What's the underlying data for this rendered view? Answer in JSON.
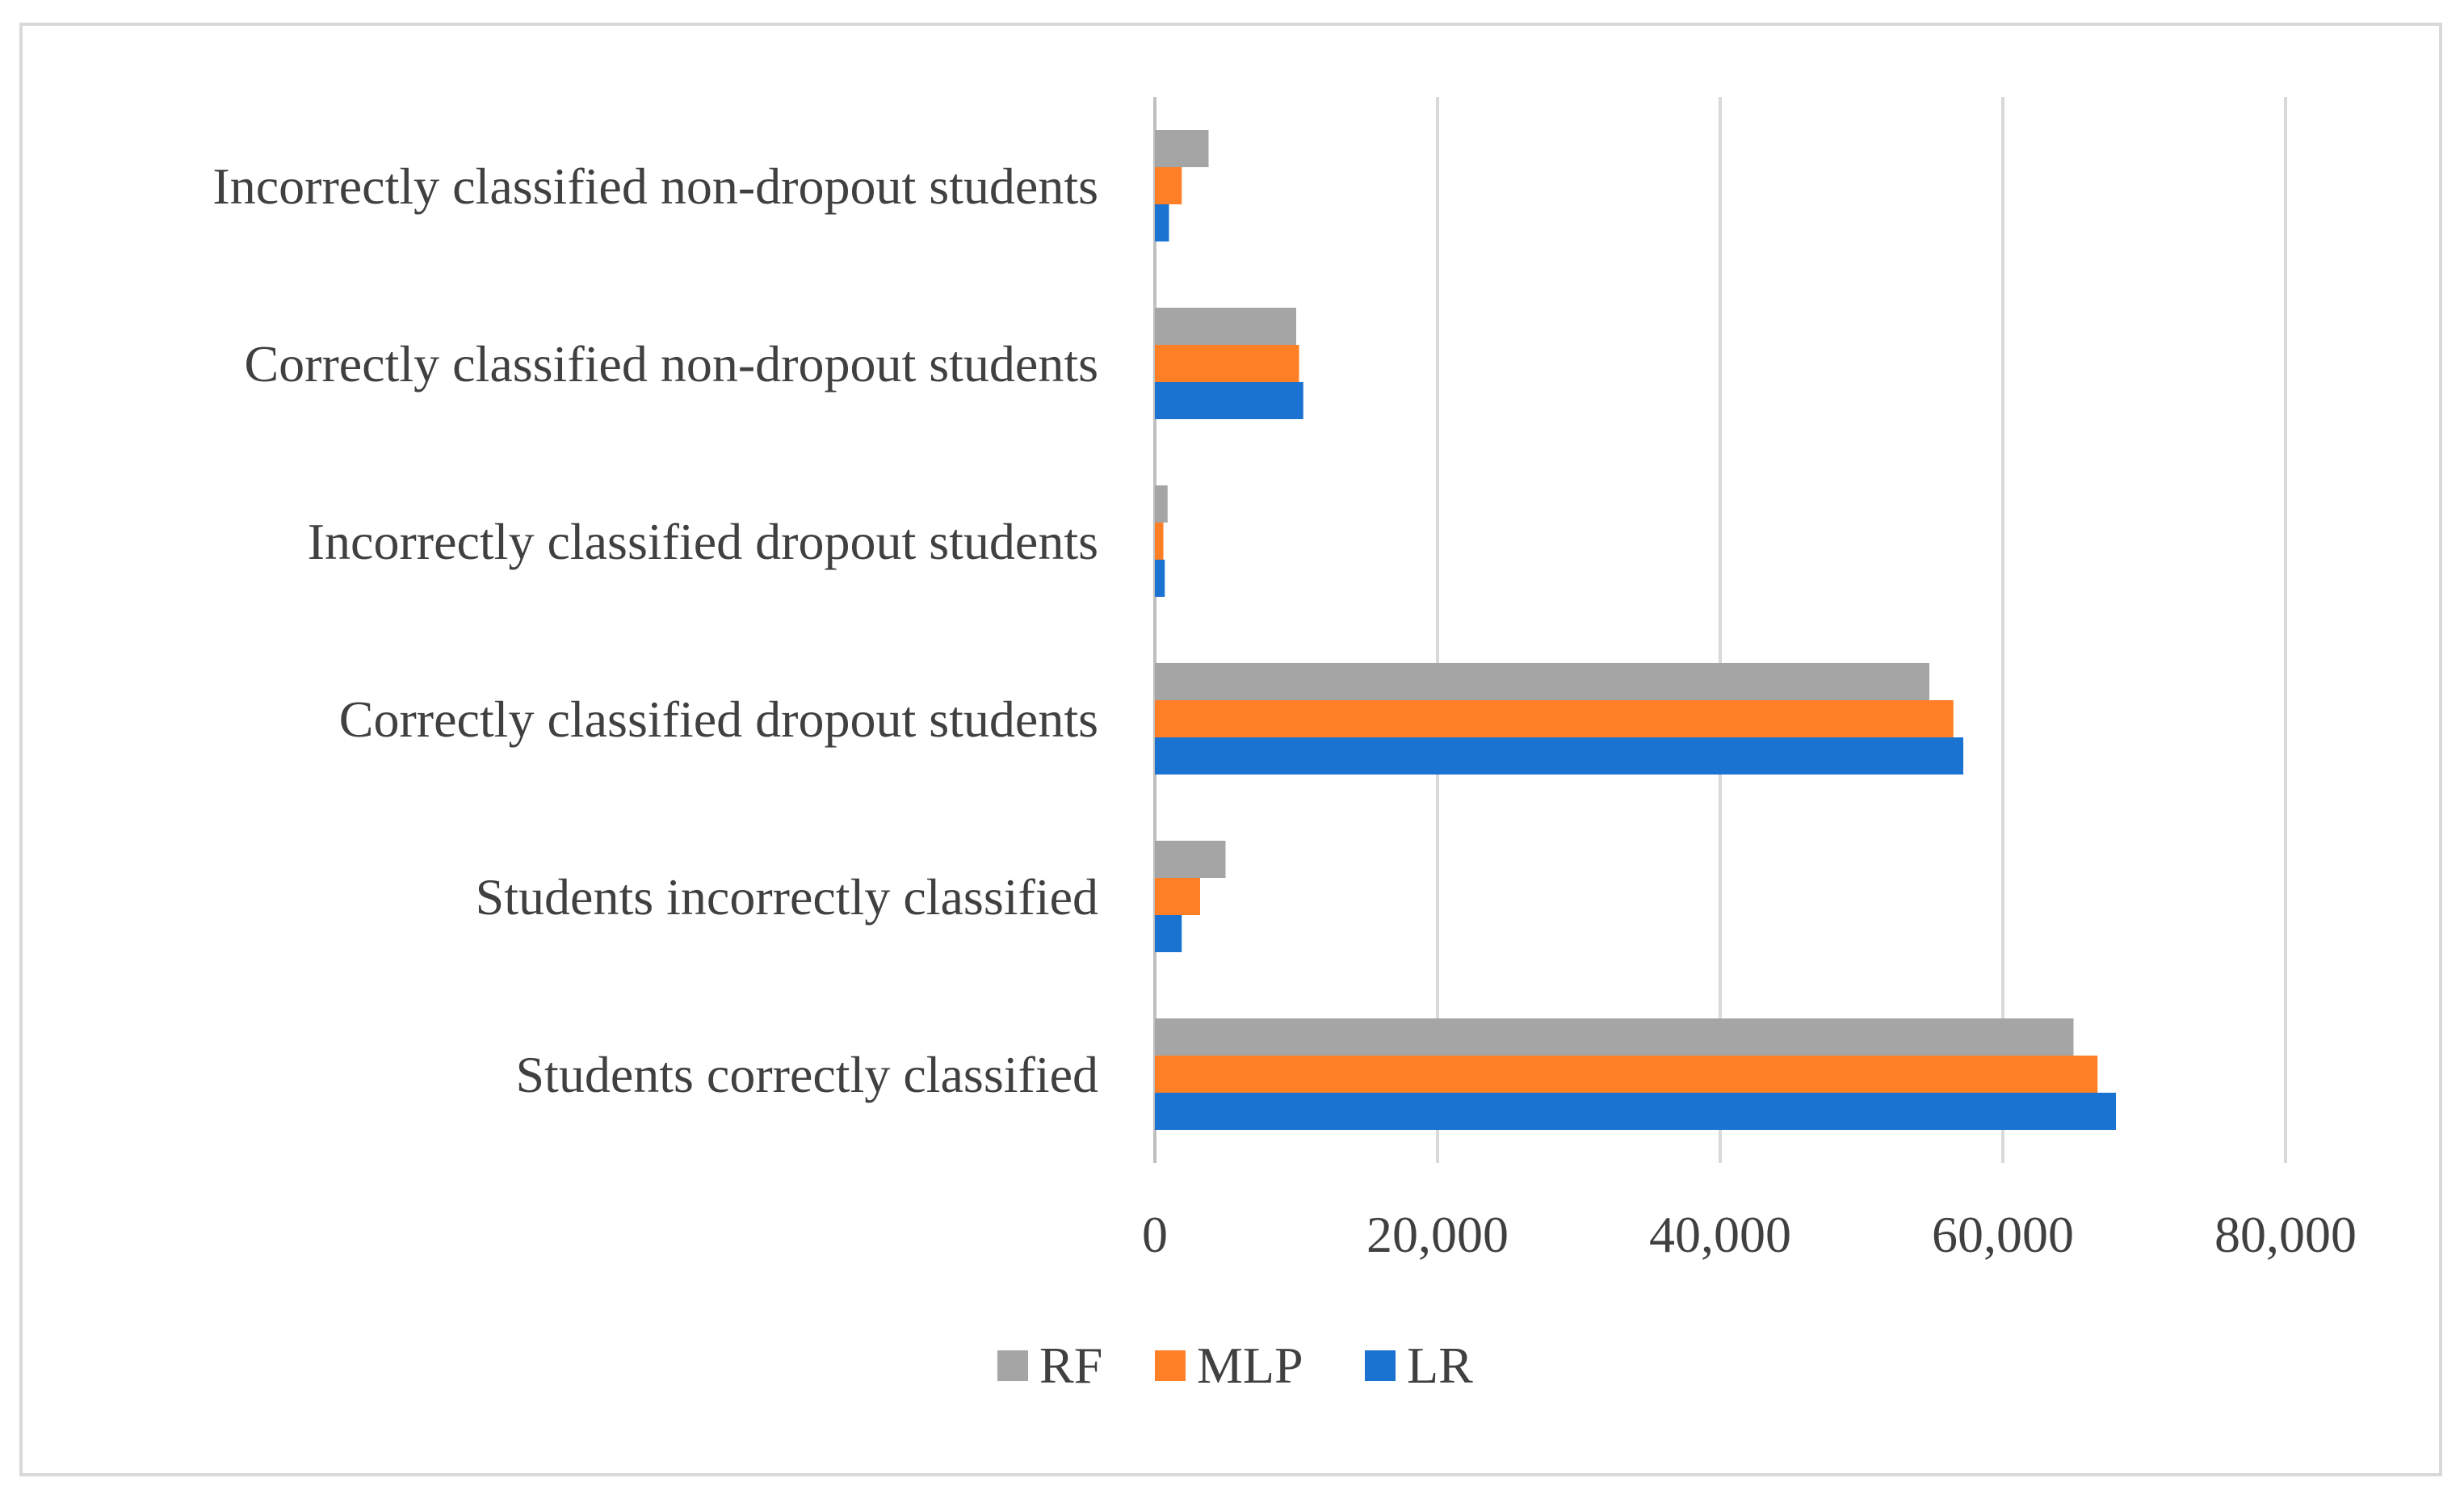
{
  "chart_data": {
    "type": "bar",
    "orientation": "horizontal",
    "categories": [
      "Incorrectly classified non-dropout students",
      "Correctly classified non-dropout students",
      "Incorrectly classified dropout students",
      "Correctly classified dropout students",
      "Students incorrectly classified",
      "Students correctly classified"
    ],
    "series": [
      {
        "name": "RF",
        "color": "#a5a5a5",
        "values": [
          3800,
          10000,
          900,
          54800,
          5000,
          65000
        ]
      },
      {
        "name": "MLP",
        "color": "#ff7f27",
        "values": [
          1900,
          10200,
          600,
          56500,
          3200,
          66700
        ]
      },
      {
        "name": "LR",
        "color": "#1a73d0",
        "values": [
          1000,
          10500,
          700,
          57200,
          1900,
          68000
        ]
      }
    ],
    "x_ticks": [
      "0",
      "20,000",
      "40,000",
      "60,000",
      "80,000"
    ],
    "xlim": [
      0,
      80000
    ],
    "grid": true,
    "legend_position": "bottom"
  }
}
